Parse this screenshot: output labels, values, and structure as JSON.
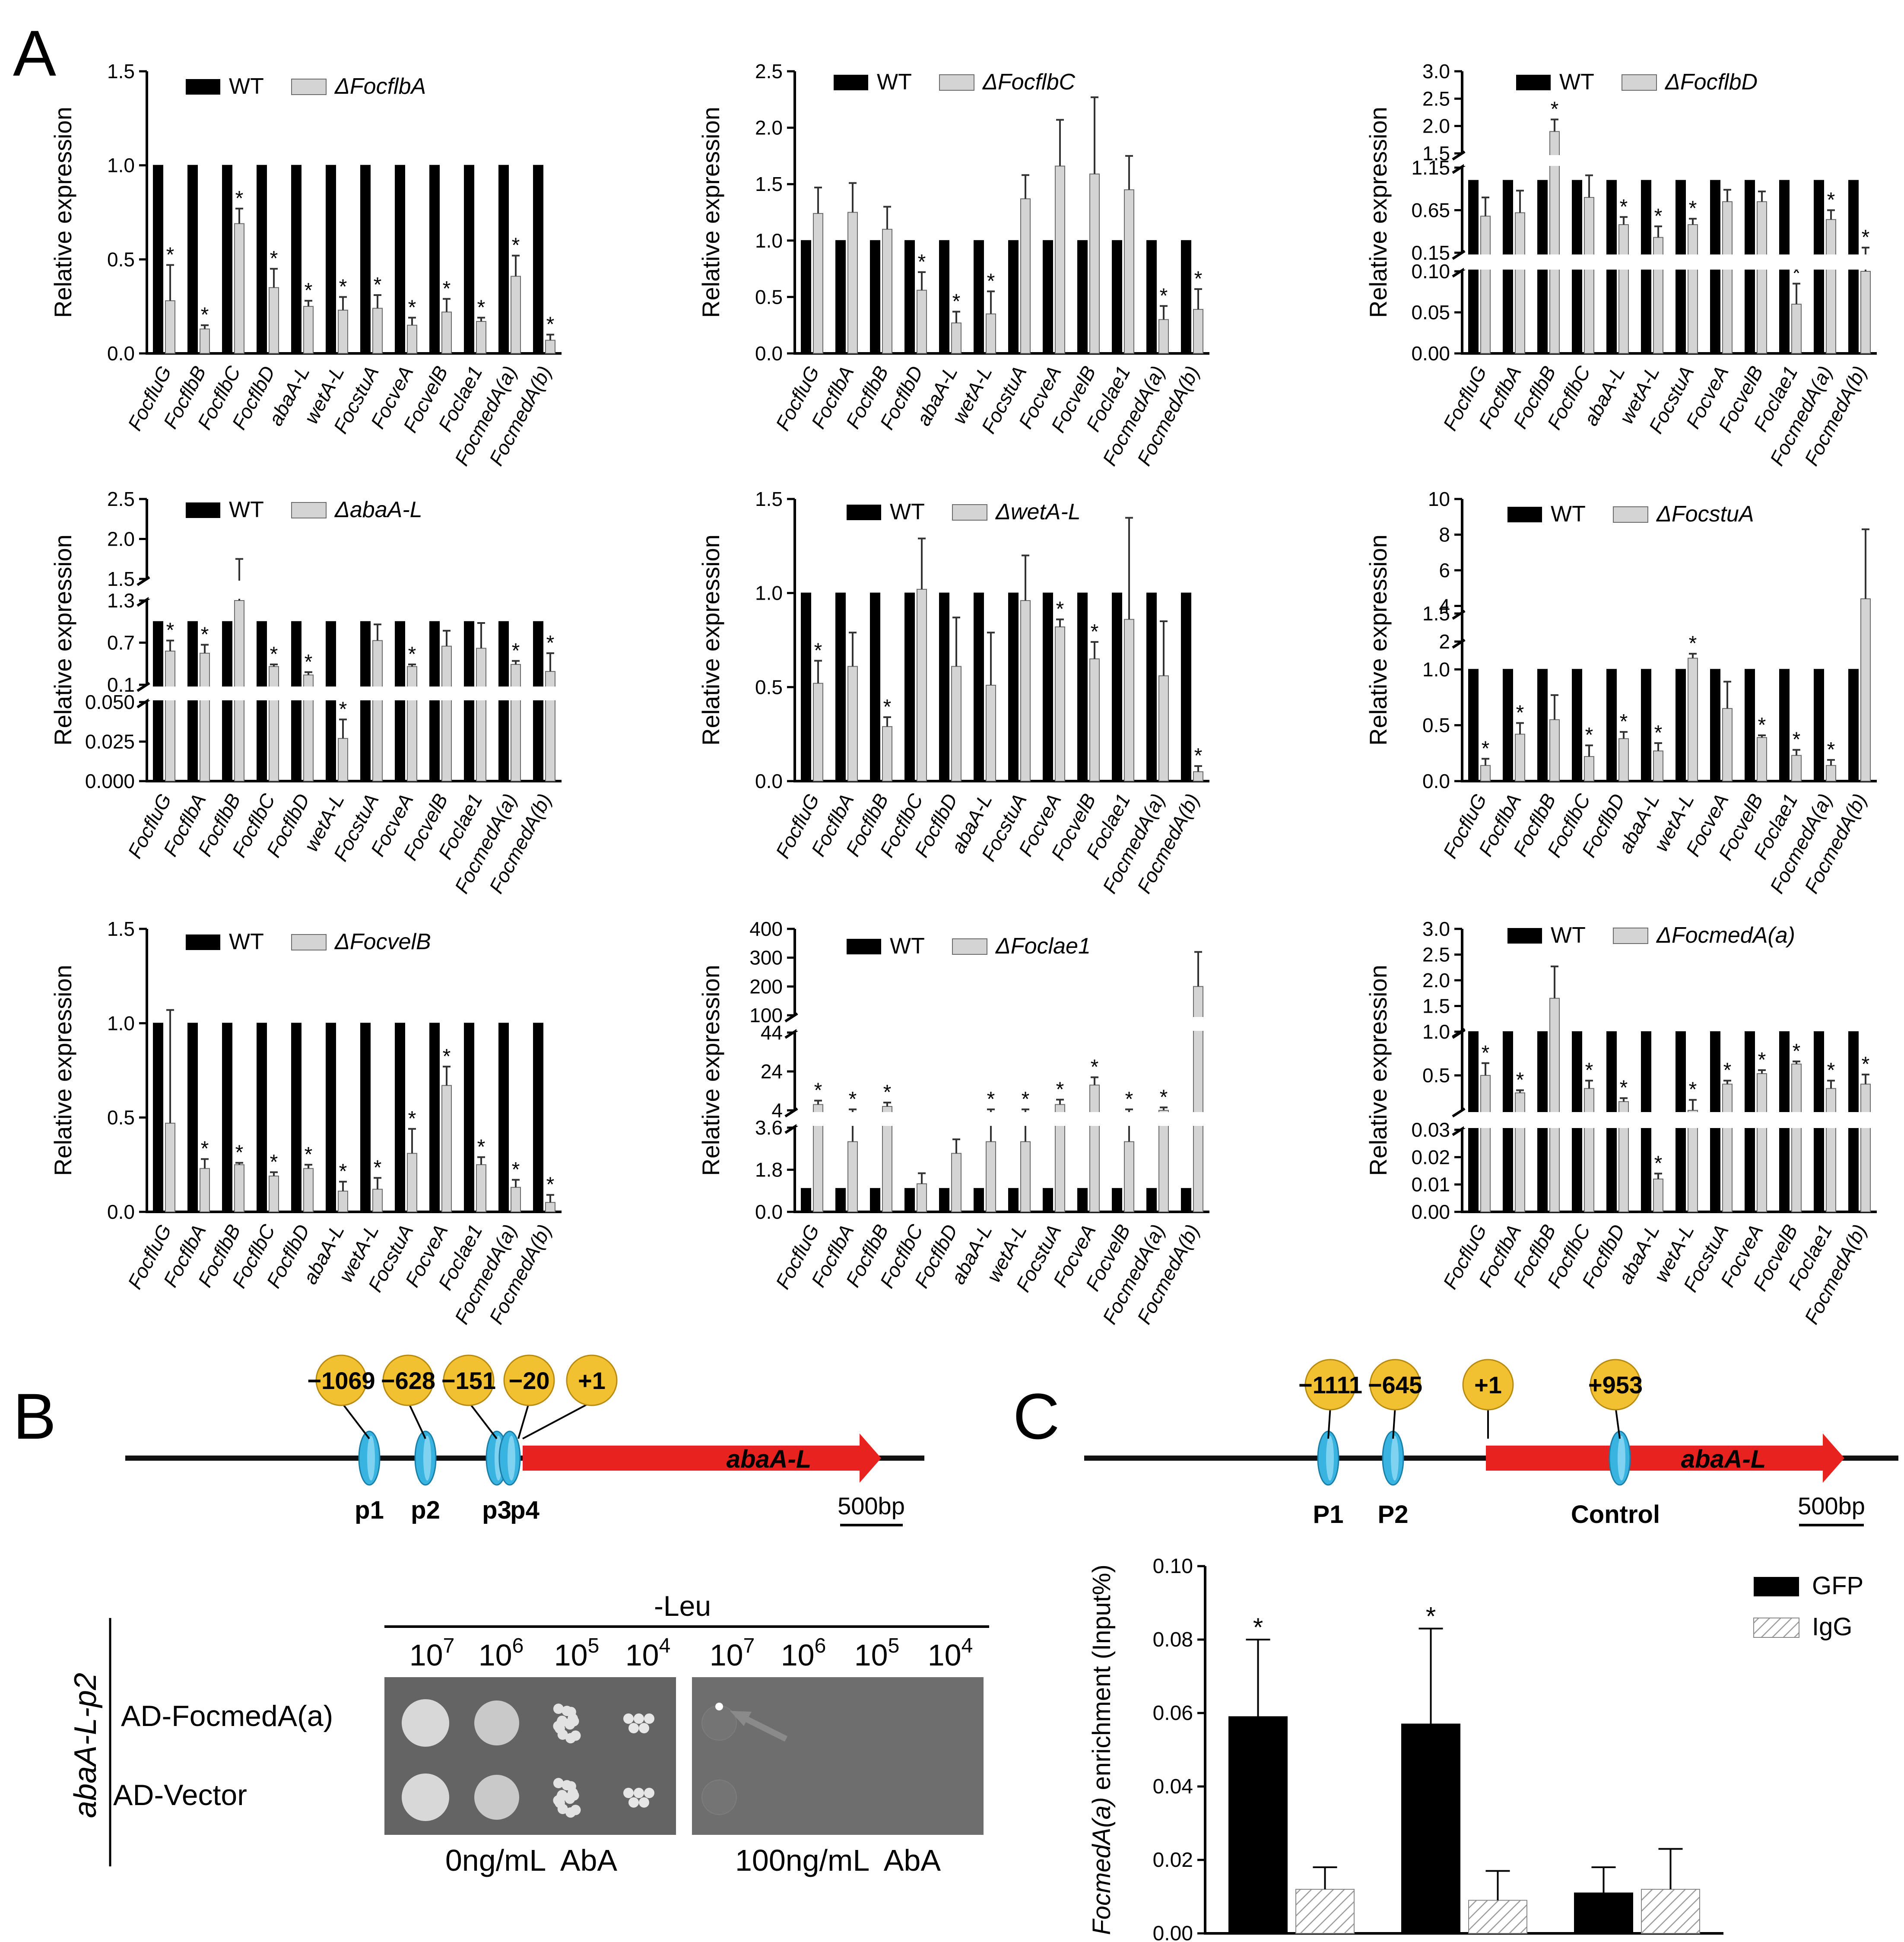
{
  "panel_labels": {
    "a": "A",
    "b": "B",
    "c": "C"
  },
  "common": {
    "ylabel": "Relative expression",
    "wt_label": "WT",
    "sig_mark": "*"
  },
  "colors": {
    "wt": "#000000",
    "mut": "#d4d4d4",
    "mut_edge": "#6a6a6a",
    "yellow": "#f2c132",
    "cyan": "#39b3df",
    "red": "#e8231f"
  },
  "chart_data": [
    {
      "type": "bar",
      "id": "flbA",
      "mutant_label": "ΔFocflbA",
      "categories": [
        "FocfluG",
        "FocflbB",
        "FocflbC",
        "FocflbD",
        "abaA-L",
        "wetA-L",
        "FocstuA",
        "FocveA",
        "FocvelB",
        "Foclae1",
        "FocmedA(a)",
        "FocmedA(b)"
      ],
      "series": [
        {
          "name": "WT",
          "values": [
            1,
            1,
            1,
            1,
            1,
            1,
            1,
            1,
            1,
            1,
            1,
            1
          ]
        },
        {
          "name": "ΔFocflbA",
          "values": [
            0.28,
            0.13,
            0.69,
            0.35,
            0.25,
            0.23,
            0.24,
            0.15,
            0.22,
            0.17,
            0.41,
            0.07
          ],
          "errors": [
            0.19,
            0.02,
            0.08,
            0.1,
            0.03,
            0.07,
            0.07,
            0.04,
            0.07,
            0.02,
            0.11,
            0.03
          ],
          "sig": [
            1,
            1,
            1,
            1,
            1,
            1,
            1,
            1,
            1,
            1,
            1,
            1
          ]
        }
      ],
      "ylim": [
        0,
        1.5
      ],
      "yticks": [
        "0.0",
        "0.5",
        "1.0",
        "1.5"
      ]
    },
    {
      "type": "bar",
      "id": "flbC",
      "mutant_label": "ΔFocflbC",
      "categories": [
        "FocfluG",
        "FocflbA",
        "FocflbB",
        "FocflbD",
        "abaA-L",
        "wetA-L",
        "FocstuA",
        "FocveA",
        "FocvelB",
        "Foclae1",
        "FocmedA(a)",
        "FocmedA(b)"
      ],
      "series": [
        {
          "name": "WT",
          "values": [
            1,
            1,
            1,
            1,
            1,
            1,
            1,
            1,
            1,
            1,
            1,
            1
          ]
        },
        {
          "name": "ΔFocflbC",
          "values": [
            1.24,
            1.25,
            1.1,
            0.56,
            0.27,
            0.35,
            1.37,
            1.66,
            1.59,
            1.45,
            0.3,
            0.39
          ],
          "errors": [
            0.23,
            0.26,
            0.2,
            0.16,
            0.1,
            0.2,
            0.21,
            0.41,
            0.68,
            0.3,
            0.12,
            0.18
          ],
          "sig": [
            0,
            0,
            0,
            1,
            1,
            1,
            0,
            0,
            0,
            0,
            1,
            1
          ]
        }
      ],
      "ylim": [
        0,
        2.5
      ],
      "yticks": [
        "0.0",
        "0.5",
        "1.0",
        "1.5",
        "2.0",
        "2.5"
      ]
    },
    {
      "type": "bar",
      "id": "flbD",
      "mutant_label": "ΔFocflbD",
      "categories": [
        "FocfluG",
        "FocflbA",
        "FocflbB",
        "FocflbC",
        "abaA-L",
        "wetA-L",
        "FocstuA",
        "FocveA",
        "FocvelB",
        "Foclae1",
        "FocmedA(a)",
        "FocmedA(b)"
      ],
      "series": [
        {
          "name": "WT",
          "values": [
            1,
            1,
            1,
            1,
            1,
            1,
            1,
            1,
            1,
            1,
            1,
            1
          ]
        },
        {
          "name": "ΔFocflbD",
          "values": [
            0.58,
            0.62,
            1.9,
            0.8,
            0.48,
            0.33,
            0.48,
            0.75,
            0.75,
            0.06,
            0.54,
            0.14
          ],
          "errors": [
            0.22,
            0.26,
            0.22,
            0.26,
            0.09,
            0.13,
            0.07,
            0.14,
            0.12,
            0.025,
            0.11,
            0.07
          ],
          "sig": [
            0,
            0,
            1,
            0,
            1,
            1,
            1,
            0,
            0,
            1,
            1,
            1
          ]
        }
      ],
      "ylim": [
        0,
        3.0
      ],
      "axis_segments": [
        [
          0,
          0.1
        ],
        [
          0.15,
          1.15
        ],
        [
          1.5,
          3.0
        ]
      ],
      "yticks": [
        "0.00",
        "0.05",
        "0.10",
        "0.15",
        "0.65",
        "1.15",
        "1.5",
        "2.0",
        "2.5",
        "3.0"
      ]
    },
    {
      "type": "bar",
      "id": "abaA",
      "mutant_label": "ΔabaA-L",
      "categories": [
        "FocfluG",
        "FocflbA",
        "FocflbB",
        "FocflbC",
        "FocflbD",
        "wetA-L",
        "FocstuA",
        "FocveA",
        "FocvelB",
        "Foclae1",
        "FocmedA(a)",
        "FocmedA(b)"
      ],
      "series": [
        {
          "name": "WT",
          "values": [
            1,
            1,
            1,
            1,
            1,
            1,
            1,
            1,
            1,
            1,
            1,
            1
          ]
        },
        {
          "name": "ΔabaA-L",
          "values": [
            0.58,
            0.55,
            1.4,
            0.36,
            0.24,
            0.027,
            0.73,
            0.36,
            0.65,
            0.62,
            0.39,
            0.29
          ],
          "errors": [
            0.15,
            0.12,
            0.35,
            0.03,
            0.04,
            0.012,
            0.23,
            0.03,
            0.22,
            0.36,
            0.05,
            0.26
          ],
          "sig": [
            1,
            1,
            0,
            1,
            1,
            1,
            0,
            1,
            0,
            0,
            1,
            1
          ]
        }
      ],
      "ylim": [
        0,
        2.5
      ],
      "axis_segments": [
        [
          0,
          0.05
        ],
        [
          0.1,
          1.3
        ],
        [
          1.5,
          2.5
        ]
      ],
      "yticks": [
        "0.000",
        "0.025",
        "0.050",
        "0.1",
        "0.7",
        "1.3",
        "1.5",
        "2.0",
        "2.5"
      ]
    },
    {
      "type": "bar",
      "id": "wetA",
      "mutant_label": "ΔwetA-L",
      "categories": [
        "FocfluG",
        "FocflbA",
        "FocflbB",
        "FocflbC",
        "FocflbD",
        "abaA-L",
        "FocstuA",
        "FocveA",
        "FocvelB",
        "Foclae1",
        "FocmedA(a)",
        "FocmedA(b)"
      ],
      "series": [
        {
          "name": "WT",
          "values": [
            1,
            1,
            1,
            1,
            1,
            1,
            1,
            1,
            1,
            1,
            1,
            1
          ]
        },
        {
          "name": "ΔwetA-L",
          "values": [
            0.52,
            0.61,
            0.29,
            1.02,
            0.61,
            0.51,
            0.96,
            0.82,
            0.65,
            0.86,
            0.56,
            0.05
          ],
          "errors": [
            0.12,
            0.18,
            0.05,
            0.27,
            0.26,
            0.28,
            0.24,
            0.04,
            0.09,
            0.54,
            0.29,
            0.03
          ],
          "sig": [
            1,
            0,
            1,
            0,
            0,
            0,
            0,
            1,
            1,
            0,
            0,
            1
          ]
        }
      ],
      "ylim": [
        0,
        1.5
      ],
      "yticks": [
        "0.0",
        "0.5",
        "1.0",
        "1.5"
      ]
    },
    {
      "type": "bar",
      "id": "stuA",
      "mutant_label": "ΔFocstuA",
      "categories": [
        "FocfluG",
        "FocflbA",
        "FocflbB",
        "FocflbC",
        "FocflbD",
        "abaA-L",
        "wetA-L",
        "FocveA",
        "FocvelB",
        "Foclae1",
        "FocmedA(a)",
        "FocmedA(b)"
      ],
      "series": [
        {
          "name": "WT",
          "values": [
            1,
            1,
            1,
            1,
            1,
            1,
            1,
            1,
            1,
            1,
            1,
            1
          ]
        },
        {
          "name": "ΔFocstuA",
          "values": [
            0.14,
            0.42,
            0.55,
            0.22,
            0.38,
            0.27,
            1.1,
            0.65,
            0.39,
            0.23,
            0.14,
            4.4
          ],
          "errors": [
            0.06,
            0.1,
            0.22,
            0.1,
            0.06,
            0.07,
            0.04,
            0.24,
            0.02,
            0.05,
            0.05,
            3.9
          ],
          "sig": [
            1,
            1,
            0,
            1,
            1,
            1,
            1,
            0,
            1,
            1,
            1,
            0
          ]
        }
      ],
      "ylim": [
        0,
        10
      ],
      "axis_segments": [
        [
          0,
          1.5
        ],
        [
          2,
          10
        ]
      ],
      "yticks": [
        "0.0",
        "0.5",
        "1.0",
        "1.5",
        "2",
        "4",
        "6",
        "8",
        "10"
      ]
    },
    {
      "type": "bar",
      "id": "velB",
      "mutant_label": "ΔFocvelB",
      "categories": [
        "FocfluG",
        "FocflbA",
        "FocflbB",
        "FocflbC",
        "FocflbD",
        "abaA-L",
        "wetA-L",
        "FocstuA",
        "FocveA",
        "Foclae1",
        "FocmedA(a)",
        "FocmedA(b)"
      ],
      "series": [
        {
          "name": "WT",
          "values": [
            1,
            1,
            1,
            1,
            1,
            1,
            1,
            1,
            1,
            1,
            1,
            1
          ]
        },
        {
          "name": "ΔFocvelB",
          "values": [
            0.47,
            0.23,
            0.25,
            0.19,
            0.23,
            0.11,
            0.12,
            0.31,
            0.67,
            0.25,
            0.13,
            0.05
          ],
          "errors": [
            0.6,
            0.05,
            0.01,
            0.02,
            0.02,
            0.05,
            0.06,
            0.13,
            0.1,
            0.04,
            0.04,
            0.04
          ],
          "sig": [
            0,
            1,
            1,
            1,
            1,
            1,
            1,
            1,
            1,
            1,
            1,
            1
          ]
        }
      ],
      "ylim": [
        0,
        1.5
      ],
      "yticks": [
        "0.0",
        "0.5",
        "1.0",
        "1.5"
      ]
    },
    {
      "type": "bar",
      "id": "lae1",
      "mutant_label": "ΔFoclae1",
      "categories": [
        "FocfluG",
        "FocflbA",
        "FocflbB",
        "FocflbC",
        "FocflbD",
        "abaA-L",
        "wetA-L",
        "FocstuA",
        "FocveA",
        "FocvelB",
        "FocmedA(a)",
        "FocmedA(b)"
      ],
      "series": [
        {
          "name": "WT",
          "values": [
            1,
            1,
            1,
            1,
            1,
            1,
            1,
            1,
            1,
            1,
            1,
            1
          ]
        },
        {
          "name": "ΔFoclae1",
          "values": [
            7,
            3,
            6,
            1.2,
            2.5,
            3,
            3,
            7,
            17,
            3,
            4,
            200
          ],
          "errors": [
            2,
            1.5,
            2,
            0.45,
            0.6,
            1.5,
            1.5,
            2.5,
            4,
            1.5,
            1.5,
            120
          ],
          "sig": [
            1,
            1,
            1,
            0,
            0,
            1,
            1,
            1,
            1,
            1,
            1,
            0
          ]
        }
      ],
      "ylim": [
        0,
        400
      ],
      "axis_segments": [
        [
          0,
          3.6
        ],
        [
          4,
          44
        ],
        [
          100,
          400
        ]
      ],
      "yticks": [
        "0.0",
        "1.8",
        "3.6",
        "4",
        "24",
        "44",
        "100",
        "200",
        "300",
        "400"
      ]
    },
    {
      "type": "bar",
      "id": "medA",
      "mutant_label": "ΔFocmedA(a)",
      "categories": [
        "FocfluG",
        "FocflbA",
        "FocflbB",
        "FocflbC",
        "FocflbD",
        "abaA-L",
        "wetA-L",
        "FocstuA",
        "FocveA",
        "FocvelB",
        "Foclae1",
        "FocmedA(b)"
      ],
      "series": [
        {
          "name": "WT",
          "values": [
            1,
            1,
            1,
            1,
            1,
            1,
            1,
            1,
            1,
            1,
            1,
            1
          ]
        },
        {
          "name": "ΔFocmedA(a)",
          "values": [
            0.5,
            0.3,
            1.65,
            0.35,
            0.2,
            0.012,
            0.1,
            0.4,
            0.52,
            0.63,
            0.35,
            0.4
          ],
          "errors": [
            0.14,
            0.03,
            0.62,
            0.09,
            0.04,
            0.002,
            0.12,
            0.04,
            0.04,
            0.03,
            0.09,
            0.11
          ],
          "sig": [
            1,
            1,
            0,
            1,
            1,
            1,
            1,
            1,
            1,
            1,
            1,
            1
          ]
        }
      ],
      "ylim": [
        0,
        3.0
      ],
      "axis_segments": [
        [
          0,
          0.03
        ],
        [
          0.1,
          1.0
        ],
        [
          1.0,
          3.0
        ]
      ],
      "yticks": [
        "0.00",
        "0.01",
        "0.02",
        "0.03",
        "0.5",
        "1.0",
        "1.5",
        "2.0",
        "2.5",
        "3.0"
      ]
    },
    {
      "type": "bar",
      "id": "chip",
      "title": "",
      "ylabel": "FocmedA(a) enrichment (Input%)",
      "categories": [
        "P1",
        "P2",
        "Control"
      ],
      "series": [
        {
          "name": "GFP",
          "values": [
            0.059,
            0.057,
            0.011
          ],
          "errors": [
            0.021,
            0.026,
            0.007
          ],
          "sig": [
            1,
            1,
            0
          ]
        },
        {
          "name": "IgG",
          "values": [
            0.012,
            0.009,
            0.012
          ],
          "errors": [
            0.006,
            0.008,
            0.011
          ],
          "sig": [
            0,
            0,
            0
          ]
        }
      ],
      "ylim": [
        0,
        0.1
      ],
      "yticks": [
        "0.00",
        "0.02",
        "0.04",
        "0.06",
        "0.08",
        "0.10"
      ]
    }
  ],
  "panel_b": {
    "positions": [
      "−1069",
      "−628",
      "−151",
      "−20",
      "+1"
    ],
    "site_labels": [
      "p1",
      "p2",
      "p3",
      "p4"
    ],
    "gene": "abaA-L",
    "scale": "500bp",
    "y2h": {
      "header": "-Leu",
      "row_group_label": "abaA-L-p2",
      "rows": [
        "AD-FocmedA(a)",
        "AD-Vector"
      ],
      "dilutions": [
        "10",
        "10",
        "10",
        "10",
        "10",
        "10",
        "10",
        "10"
      ],
      "exponents": [
        "7",
        "6",
        "5",
        "4",
        "7",
        "6",
        "5",
        "4"
      ],
      "conditions": [
        "0ng/mL  AbA",
        "100ng/mL  AbA"
      ]
    }
  },
  "panel_c": {
    "positions": [
      "−1111",
      "−645",
      "+1",
      "+953"
    ],
    "site_labels": [
      "P1",
      "P2",
      "Control"
    ],
    "gene": "abaA-L",
    "scale": "500bp"
  }
}
